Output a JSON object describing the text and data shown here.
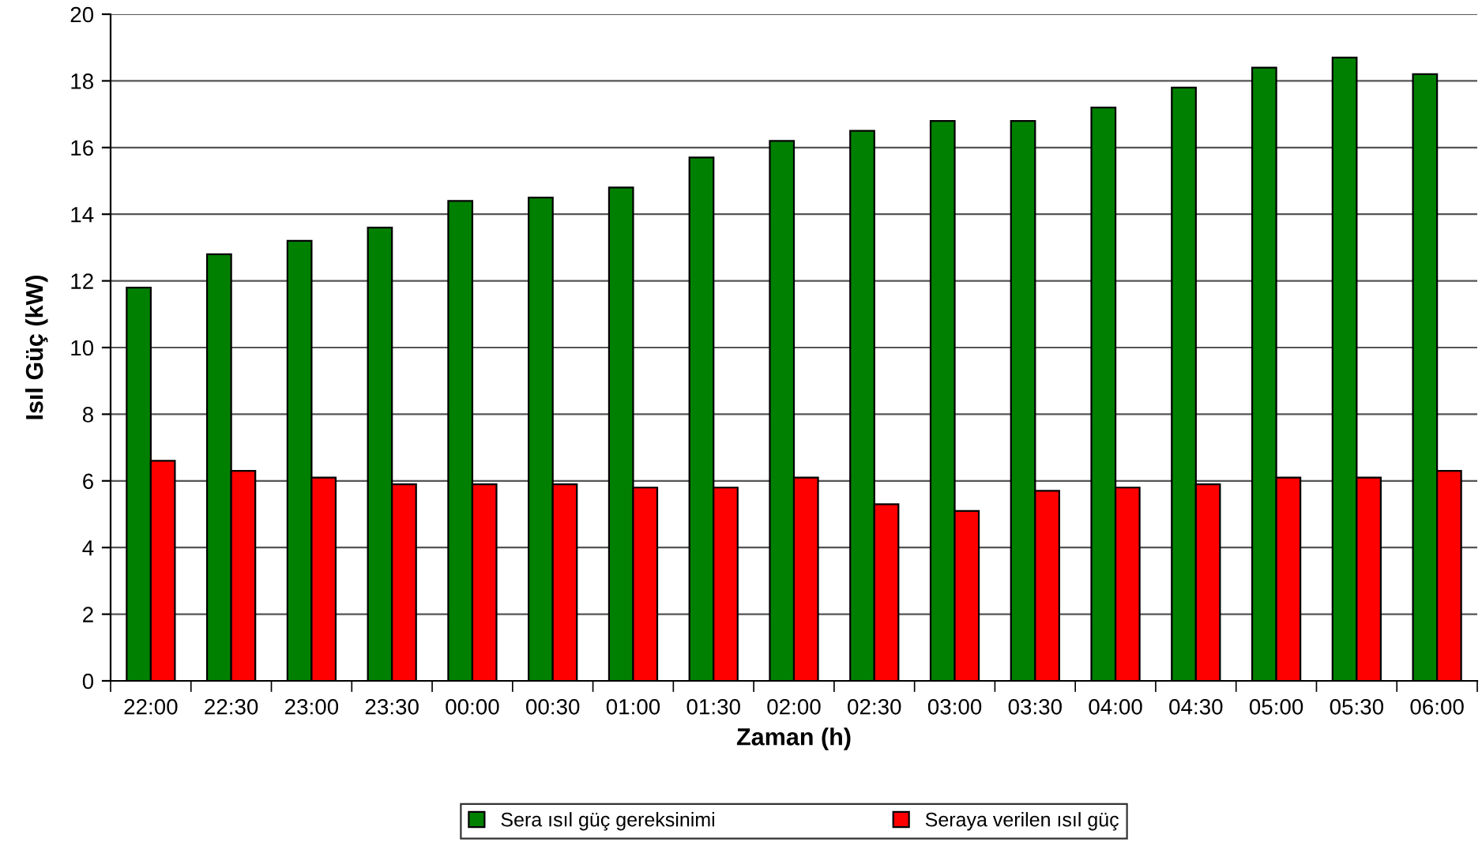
{
  "chart_data": {
    "type": "bar",
    "xlabel": "Zaman (h)",
    "ylabel": "Isıl Güç (kW)",
    "categories": [
      "22:00",
      "22:30",
      "23:00",
      "23:30",
      "00:00",
      "00:30",
      "01:00",
      "01:30",
      "02:00",
      "02:30",
      "03:00",
      "03:30",
      "04:00",
      "04:30",
      "05:00",
      "05:30",
      "06:00"
    ],
    "series": [
      {
        "name": "Sera ısıl güç gereksinimi",
        "color": "#008000",
        "values": [
          11.8,
          12.8,
          13.2,
          13.6,
          14.4,
          14.5,
          14.8,
          15.7,
          16.2,
          16.5,
          16.8,
          16.8,
          17.2,
          17.8,
          18.4,
          18.7,
          18.2
        ]
      },
      {
        "name": "Seraya verilen ısıl güç",
        "color": "#ff0000",
        "values": [
          6.6,
          6.3,
          6.1,
          5.9,
          5.9,
          5.9,
          5.8,
          5.8,
          6.1,
          5.3,
          5.1,
          5.7,
          5.8,
          5.9,
          6.1,
          6.1,
          6.3
        ]
      }
    ],
    "ylim": [
      0,
      20
    ],
    "yticks": [
      0,
      2,
      4,
      6,
      8,
      10,
      12,
      14,
      16,
      18,
      20
    ],
    "grid": "y",
    "legend": "bottom"
  }
}
